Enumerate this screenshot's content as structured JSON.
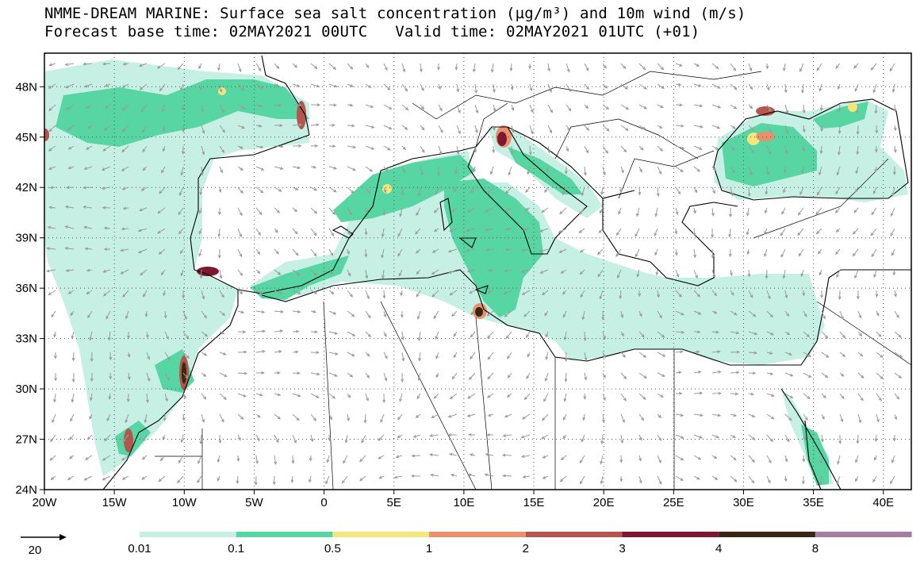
{
  "title": {
    "line1": "NMME-DREAM MARINE: Surface sea salt concentration (µg/m³) and 10m wind (m/s)",
    "line2": "Forecast base time: 02MAY2021 00UTC   Valid time: 02MAY2021 01UTC (+01)"
  },
  "axes": {
    "x_ticks": [
      "20W",
      "15W",
      "10W",
      "5W",
      "0",
      "5E",
      "10E",
      "15E",
      "20E",
      "25E",
      "30E",
      "35E",
      "40E"
    ],
    "y_ticks": [
      "24N",
      "27N",
      "30N",
      "33N",
      "36N",
      "39N",
      "42N",
      "45N",
      "48N"
    ],
    "lon_range": [
      -20,
      42
    ],
    "lat_range": [
      24,
      50
    ]
  },
  "legend": {
    "reference_vector_label": "20",
    "bin_labels": [
      "0.01",
      "0.1",
      "0.5",
      "1",
      "2",
      "3",
      "4",
      "8"
    ],
    "bin_colors": [
      "#c7f0e4",
      "#57d6a4",
      "#f5e67c",
      "#e9906e",
      "#b5564e",
      "#7d1830",
      "#3a2514",
      "#a77da3"
    ]
  },
  "colors": {
    "land": "#ffffff",
    "coast": "#000000",
    "wind_arrow": "#9a9a9a",
    "grid": "#555555"
  }
}
